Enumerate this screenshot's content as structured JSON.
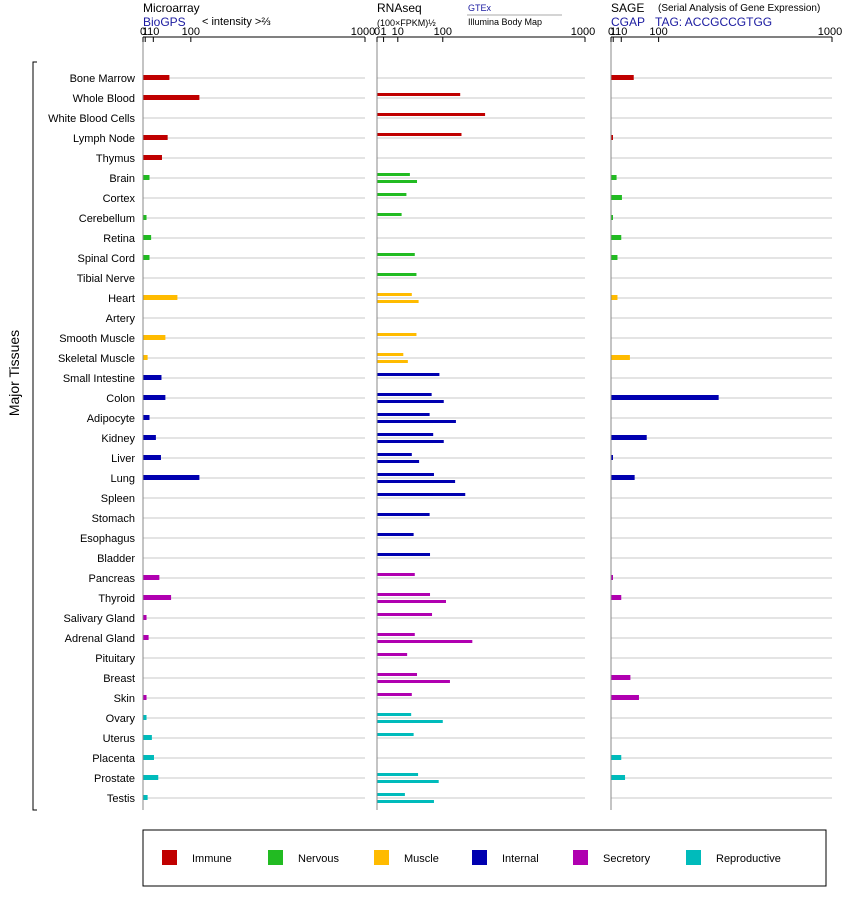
{
  "y_axis_label": "Major Tissues",
  "tissues": [
    "Bone Marrow",
    "Whole Blood",
    "White Blood Cells",
    "Lymph Node",
    "Thymus",
    "Brain",
    "Cortex",
    "Cerebellum",
    "Retina",
    "Spinal Cord",
    "Tibial Nerve",
    "Heart",
    "Artery",
    "Smooth Muscle",
    "Skeletal Muscle",
    "Small Intestine",
    "Colon",
    "Adipocyte",
    "Kidney",
    "Liver",
    "Lung",
    "Spleen",
    "Stomach",
    "Esophagus",
    "Bladder",
    "Pancreas",
    "Thyroid",
    "Salivary Gland",
    "Adrenal Gland",
    "Pituitary",
    "Breast",
    "Skin",
    "Ovary",
    "Uterus",
    "Placenta",
    "Prostate",
    "Testis"
  ],
  "categories": {
    "Immune": {
      "color": "#c00000",
      "tissues": [
        "Bone Marrow",
        "Whole Blood",
        "White Blood Cells",
        "Lymph Node",
        "Thymus"
      ]
    },
    "Nervous": {
      "color": "#22bb22",
      "tissues": [
        "Brain",
        "Cortex",
        "Cerebellum",
        "Retina",
        "Spinal Cord",
        "Tibial Nerve"
      ]
    },
    "Muscle": {
      "color": "#ffbb00",
      "tissues": [
        "Heart",
        "Artery",
        "Smooth Muscle",
        "Skeletal Muscle"
      ]
    },
    "Internal": {
      "color": "#0000b0",
      "tissues": [
        "Small Intestine",
        "Colon",
        "Adipocyte",
        "Kidney",
        "Liver",
        "Lung",
        "Spleen",
        "Stomach",
        "Esophagus",
        "Bladder"
      ]
    },
    "Secretory": {
      "color": "#b000b0",
      "tissues": [
        "Pancreas",
        "Thyroid",
        "Salivary Gland",
        "Adrenal Gland",
        "Pituitary",
        "Breast",
        "Skin"
      ]
    },
    "Reproductive": {
      "color": "#00bbbb",
      "tissues": [
        "Ovary",
        "Uterus",
        "Placenta",
        "Prostate",
        "Testis"
      ]
    }
  },
  "legend": [
    {
      "name": "Immune",
      "color": "#c00000"
    },
    {
      "name": "Nervous",
      "color": "#22bb22"
    },
    {
      "name": "Muscle",
      "color": "#ffbb00"
    },
    {
      "name": "Internal",
      "color": "#0000b0"
    },
    {
      "name": "Secretory",
      "color": "#b000b0"
    },
    {
      "name": "Reproductive",
      "color": "#00bbbb"
    }
  ],
  "chart_data": [
    {
      "type": "bar",
      "title": "Microarray",
      "subtitle": "BioGPS",
      "xlabel": "< intensity >⅔",
      "scale": "power 2/3",
      "xlim": [
        0,
        1000
      ],
      "ticks": [
        0,
        1,
        10,
        100,
        1000
      ],
      "grid": true,
      "values": [
        41,
        128,
        null,
        37,
        25,
        5,
        null,
        2,
        7,
        5,
        null,
        61,
        null,
        32,
        3,
        24,
        32,
        5,
        14,
        23,
        128,
        null,
        null,
        null,
        null,
        20,
        45,
        2,
        4,
        null,
        null,
        2,
        2,
        8,
        11,
        18,
        3
      ]
    },
    {
      "type": "bar",
      "title": "RNAseq",
      "xlabel": "(100×FPKM)½",
      "source": "GTEx",
      "source_note": "Illumina Body Map",
      "scale": "power 1/2",
      "xlim": [
        0,
        1000
      ],
      "ticks": [
        0,
        1,
        10,
        100,
        1000
      ],
      "grid": true,
      "values_gtex": [
        null,
        160,
        270,
        165,
        null,
        25,
        20,
        14,
        null,
        33,
        36,
        28,
        null,
        36,
        16,
        90,
        69,
        64,
        73,
        28,
        75,
        180,
        64,
        31,
        65,
        33,
        65,
        70,
        33,
        21,
        37,
        28,
        27,
        31,
        null,
        39,
        18
      ],
      "values_illumina": [
        null,
        null,
        null,
        null,
        null,
        37,
        null,
        null,
        null,
        null,
        null,
        40,
        null,
        null,
        22,
        null,
        103,
        144,
        103,
        41,
        141,
        null,
        null,
        null,
        null,
        null,
        110,
        null,
        210,
        null,
        123,
        null,
        100,
        null,
        null,
        88,
        75
      ]
    },
    {
      "type": "bar",
      "title": "SAGE",
      "subtitle": "CGAP",
      "xlabel": "TAG: ACCGCCGTGG",
      "note": "(Serial Analysis of Gene Expression)",
      "scale": "power 2/3",
      "xlim": [
        0,
        1000
      ],
      "ticks": [
        0,
        1,
        10,
        100,
        1000
      ],
      "grid": true,
      "values": [
        33,
        null,
        null,
        0.1,
        null,
        4,
        11,
        0.1,
        10,
        5,
        null,
        5,
        null,
        null,
        25,
        null,
        340,
        null,
        65,
        0.1,
        35,
        null,
        null,
        null,
        null,
        0.1,
        10,
        null,
        null,
        null,
        26,
        45,
        null,
        null,
        10,
        16,
        null
      ]
    }
  ]
}
